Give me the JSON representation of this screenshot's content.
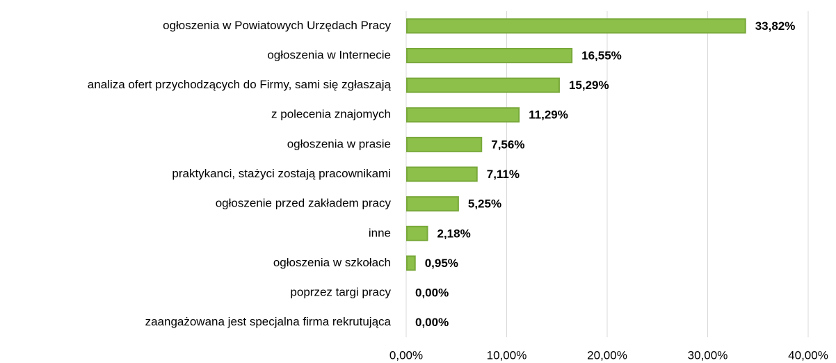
{
  "chart_data": {
    "type": "bar",
    "orientation": "horizontal",
    "categories": [
      "ogłoszenia w Powiatowych Urzędach Pracy",
      "ogłoszenia w Internecie",
      "analiza ofert przychodzących do Firmy, sami się zgłaszają",
      "z polecenia znajomych",
      "ogłoszenia w prasie",
      "praktykanci, stażyci zostają pracownikami",
      "ogłoszenie przed zakładem pracy",
      "inne",
      "ogłoszenia w szkołach",
      "poprzez targi pracy",
      "zaangażowana jest specjalna firma rekrutująca"
    ],
    "values": [
      33.82,
      16.55,
      15.29,
      11.29,
      7.56,
      7.11,
      5.25,
      2.18,
      0.95,
      0,
      0
    ],
    "value_labels": [
      "33,82%",
      "16,55%",
      "15,29%",
      "11,29%",
      "7,56%",
      "7,11%",
      "5,25%",
      "2,18%",
      "0,95%",
      "0,00%",
      "0,00%"
    ],
    "color": "#8dc04a",
    "xlim": [
      0,
      40
    ],
    "xticks": [
      {
        "value": 0,
        "label": "0,00%"
      },
      {
        "value": 10,
        "label": "10,00%"
      },
      {
        "value": 20,
        "label": "20,00%"
      },
      {
        "value": 30,
        "label": "30,00%"
      },
      {
        "value": 40,
        "label": "40,00%"
      }
    ],
    "grid": true
  }
}
